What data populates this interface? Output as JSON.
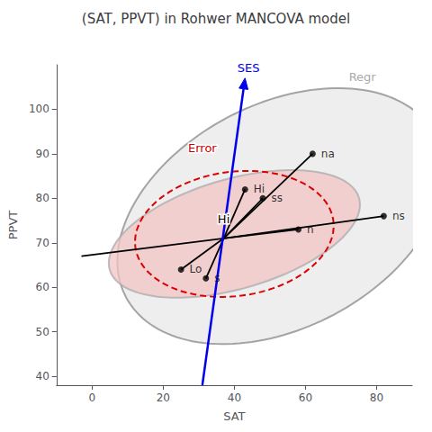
{
  "chart_data": {
    "type": "heplot",
    "title": "(SAT, PPVT) in Rohwer MANCOVA model",
    "xlabel": "SAT",
    "ylabel": "PPVT",
    "xlim": [
      -10,
      90
    ],
    "ylim": [
      38,
      110
    ],
    "xticks": [
      0,
      20,
      40,
      60,
      80
    ],
    "yticks": [
      40,
      50,
      60,
      70,
      80,
      90,
      100
    ],
    "grid": false,
    "center": [
      37,
      71
    ],
    "points": {
      "labels": [
        "Hi",
        "Lo",
        "ss",
        "s",
        "n",
        "na",
        "ns"
      ],
      "x": [
        43,
        25,
        48,
        32,
        58,
        62,
        82
      ],
      "y": [
        82,
        64,
        80,
        62,
        73,
        90,
        76
      ],
      "color": "#000000"
    },
    "extra_line_end": [
      -3,
      67
    ],
    "ellipses": [
      {
        "center": [
          53,
          76
        ],
        "width": 95,
        "height": 52,
        "angle": 18,
        "color": "#888888",
        "fill_color": "#e8e8e8",
        "line_style": "solid"
      },
      {
        "center": [
          40,
          72
        ],
        "width": 72,
        "height": 25,
        "angle": 12,
        "color": "#aaaaaa",
        "fill_color": "#f2c4c4",
        "line_style": "solid"
      },
      {
        "center": [
          40,
          72
        ],
        "width": 56,
        "height": 28,
        "angle": 5,
        "color": "#dd0000",
        "line_style": "dashed"
      }
    ],
    "arrow": {
      "from": [
        31,
        38
      ],
      "to": [
        43,
        107
      ],
      "color": "#0000ee"
    },
    "annotations": [
      {
        "text": "Hi",
        "x": 37,
        "y": 74,
        "color": "#000000"
      },
      {
        "text": "Error",
        "x": 31,
        "y": 90,
        "color": "#cc0000"
      },
      {
        "text": "Regr",
        "x": 76,
        "y": 106,
        "color": "#aaaaaa"
      },
      {
        "text": "SES",
        "x": 44,
        "y": 108,
        "color": "#0000ee"
      }
    ]
  }
}
